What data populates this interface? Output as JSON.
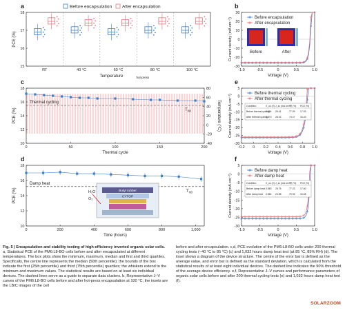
{
  "panels": {
    "a": {
      "label": "a"
    },
    "b": {
      "label": "b"
    },
    "c": {
      "label": "c"
    },
    "d": {
      "label": "d"
    },
    "e": {
      "label": "e"
    },
    "f": {
      "label": "f"
    }
  },
  "chart_data": [
    {
      "id": "a",
      "type": "box",
      "ylabel": "PCE (%)",
      "xlabel": "Temperature",
      "xlabel_sub": "hot-press",
      "categories": [
        "RT",
        "40 °C",
        "60 °C",
        "80 °C",
        "100 °C"
      ],
      "ylim": [
        15,
        18
      ],
      "yticks": [
        15,
        16,
        17,
        18
      ],
      "legend": [
        "Before encapsulation",
        "After encapsulation"
      ],
      "series": [
        {
          "name": "Before encapsulation",
          "color": "#3d7fc4",
          "values": [
            16.9,
            17.0,
            16.9,
            17.0,
            17.0
          ]
        },
        {
          "name": "After encapsulation",
          "color": "#e8707a",
          "values": [
            17.5,
            17.4,
            17.4,
            17.5,
            17.5
          ]
        }
      ]
    },
    {
      "id": "b",
      "type": "line",
      "ylabel": "Current density (mA cm⁻²)",
      "xlabel": "Voltage (V)",
      "xlim": [
        -1.0,
        1.0
      ],
      "ylim": [
        -30,
        30
      ],
      "xticks": [
        "-1.0",
        "-0.5",
        "0",
        "0.5",
        "1.0"
      ],
      "yticks": [
        -30,
        -20,
        -10,
        0,
        10,
        20,
        30
      ],
      "inset_labels": [
        "Before",
        "After"
      ],
      "series": [
        {
          "name": "Before encapsulation",
          "color": "#3d7fc4"
        },
        {
          "name": "After encapsulation",
          "color": "#e8707a"
        }
      ]
    },
    {
      "id": "c",
      "type": "line",
      "ylabel": "PCE (%)",
      "ylabel_right": "Temperature (°C)",
      "xlabel": "Thermal cycle",
      "xlim": [
        0,
        200
      ],
      "ylim": [
        10,
        18
      ],
      "xticks": [
        0,
        50,
        100,
        150,
        200
      ],
      "yticks": [
        10,
        12,
        14,
        16,
        18
      ],
      "yticks_right": [
        -40,
        -20,
        0,
        20,
        40,
        60,
        80
      ],
      "annotation": "Thermal cycling",
      "t80": "T",
      "t80_sub": "80",
      "x": [
        0,
        10,
        20,
        30,
        40,
        50,
        60,
        70,
        80,
        100,
        120,
        140,
        150,
        170,
        190,
        200
      ],
      "values": [
        17.2,
        17.1,
        17.0,
        16.9,
        16.8,
        16.7,
        16.6,
        16.6,
        16.5,
        16.5,
        16.4,
        16.3,
        16.3,
        16.2,
        16.2,
        16.1
      ]
    },
    {
      "id": "d",
      "type": "line",
      "ylabel": "PCE (%)",
      "xlabel": "Time (hours)",
      "xlim": [
        0,
        1050
      ],
      "ylim": [
        10,
        18
      ],
      "xticks": [
        0,
        200,
        400,
        600,
        800,
        "1,000"
      ],
      "yticks": [
        10,
        12,
        14,
        16,
        18
      ],
      "annotation": "Damp heat",
      "t80": "T",
      "t80_sub": "80",
      "x": [
        0,
        100,
        200,
        300,
        400,
        500,
        600,
        700,
        800,
        900,
        1032
      ],
      "values": [
        17.0,
        17.0,
        17.1,
        16.9,
        16.9,
        16.8,
        16.7,
        16.6,
        16.6,
        16.5,
        16.2
      ],
      "inset": {
        "layers": [
          "Butyl rubber",
          "CYTOP"
        ],
        "h2o": "H₂O",
        "o2": "O₂"
      }
    },
    {
      "id": "e",
      "type": "line",
      "ylabel": "Current density (mA cm⁻²)",
      "xlabel": "Voltage (V)",
      "xlim": [
        -0.2,
        1.0
      ],
      "ylim": [
        -30,
        5
      ],
      "xticks": [
        "-0.2",
        "0",
        "0.2",
        "0.4",
        "0.6",
        "0.8",
        "1.0"
      ],
      "yticks": [
        -30,
        -25,
        -20,
        -15,
        -10,
        -5,
        0,
        5
      ],
      "series": [
        {
          "name": "Before thermal cycling",
          "color": "#3d7fc4"
        },
        {
          "name": "After thermal cycling",
          "color": "#e8707a"
        }
      ],
      "table": {
        "headers": [
          "Condition",
          "V_oc (V)",
          "J_sc (mA cm⁻²)",
          "FF (%)",
          "PCE (%)"
        ],
        "rows": [
          [
            "Before thermal cycling",
            "0.884",
            "26.41",
            "77.09",
            "17.53"
          ],
          [
            "After thermal cycling",
            "0.873",
            "26.02",
            "74.27",
            "16.43"
          ]
        ]
      }
    },
    {
      "id": "f",
      "type": "line",
      "ylabel": "Current density (mA cm⁻²)",
      "xlabel": "Voltage (V)",
      "xlim": [
        -1.0,
        1.0
      ],
      "ylim": [
        -30,
        5
      ],
      "xticks": [
        "-1.0",
        "-0.5",
        "0",
        "0.5",
        "1.0"
      ],
      "yticks": [
        -30,
        -25,
        -20,
        -15,
        -10,
        -5,
        0,
        5
      ],
      "series": [
        {
          "name": "Before damp heat",
          "color": "#3d7fc4"
        },
        {
          "name": "After damp heat",
          "color": "#e8707a"
        }
      ],
      "table": {
        "headers": [
          "Condition",
          "V_oc (V)",
          "J_sc (mA cm⁻²)",
          "FF (%)",
          "PCE (%)"
        ],
        "rows": [
          [
            "Before damp heat",
            "0.883",
            "25.76",
            "77.23",
            "17.60"
          ],
          [
            "After damp heat",
            "0.864",
            "24.58",
            "75.96",
            "16.68"
          ]
        ]
      }
    }
  ],
  "caption": {
    "lead": "Fig. 5 | Encapsulation and stability testing of high-efficiency inverted organic solar cells.",
    "col1": " a, Statistical PCE of the PM6:L8-BO cells before and after encapsulated at different temperatures. The box plots show the minimum, maximum, median and first and third quartiles. Specifically, the centre line represents the median (50th percentile); the bounds of the box indicate the first (25th percentile) and third (75th percentile) quartiles; the whiskers extend to the minimum and maximum values. The statistical results are based on at least six individual devices. The dashed lines serve as a guide to separate data clusters. b, Representative J–V curves of the PM6:L8-BO cells before and after hot-press encapsulation at 100 °C; the insets are the LBIC images of the cell",
    "col2": "before and after encapsulation. c,d, PCE evolution of the PM6:L8-BO cells under 200 thermal cycling tests (−40 °C to 85 °C) (c) and 1,032 hours damp heat test (at 85 °C, 85% RH) (d). The inset shows a diagram of the device structure. The centre of the error bar is defined as the average value, and error bar is defined as the standard deviation, which is calculated from the statistical results of at least eight individual devices. The dashed line indicates the 90% threshold of the average device efficiency. e,f, Representative J–V curves and performance parameters of organic solar cells before and after 200 thermal cycling tests (e) and 1,032 hours damp heat test (f)."
  },
  "watermark": "SOLARZOOM"
}
